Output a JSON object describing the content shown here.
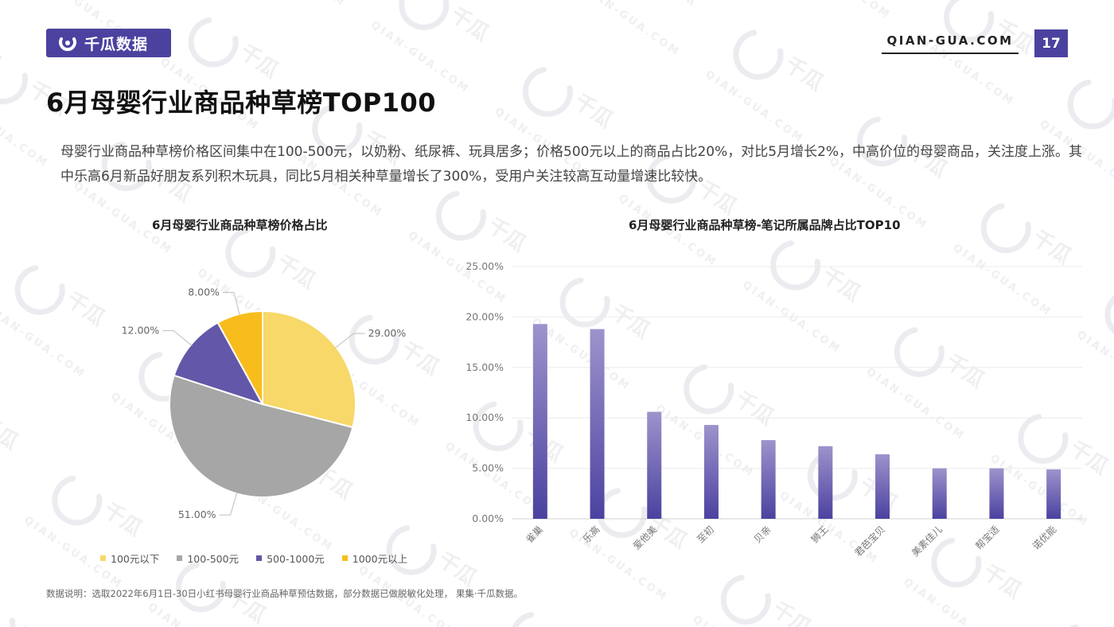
{
  "header": {
    "brand_name": "千瓜数据",
    "site": "QIAN-GUA.COM",
    "page_number": "17",
    "brand_color": "#4b42a0"
  },
  "title": "6月母婴行业商品种草榜TOP100",
  "summary": "母婴行业商品种草榜价格区间集中在100-500元，以奶粉、纸尿裤、玩具居多；价格500元以上的商品占比20%，对比5月增长2%，中高价位的母婴商品，关注度上涨。其中乐高6月新品好朋友系列积木玩具，同比5月相关种草量增长了300%，受用户关注较高互动量增速比较快。",
  "footnote": "数据说明：选取2022年6月1日-30日小红书母婴行业商品种草预估数据，部分数据已做脱敏化处理，  果集·千瓜数据。",
  "chart_data": [
    {
      "type": "pie",
      "title": "6月母婴行业商品种草榜价格占比",
      "slices": [
        {
          "label": "100元以下",
          "value": 29,
          "display": "29.00%",
          "color": "#f7d869"
        },
        {
          "label": "100-500元",
          "value": 51,
          "display": "51.00%",
          "color": "#a6a6a6"
        },
        {
          "label": "500-1000元",
          "value": 12,
          "display": "12.00%",
          "color": "#6257a8"
        },
        {
          "label": "1000元以上",
          "value": 8,
          "display": "8.00%",
          "color": "#f8bd1c"
        }
      ],
      "legend_position": "bottom"
    },
    {
      "type": "bar",
      "title": "6月母婴行业商品种草榜-笔记所属品牌占比TOP10",
      "categories": [
        "雀巢",
        "乐高",
        "爱他美",
        "至初",
        "贝亲",
        "狮王",
        "君芭宝贝",
        "美素佳儿",
        "帮宝适",
        "诺优能"
      ],
      "values": [
        19.3,
        18.8,
        10.6,
        9.3,
        7.8,
        7.2,
        6.4,
        5.0,
        5.0,
        4.9
      ],
      "ylim": [
        0,
        25
      ],
      "yticks": [
        "0.00%",
        "5.00%",
        "10.00%",
        "15.00%",
        "20.00%",
        "25.00%"
      ],
      "grid": true,
      "bar_color_top": "#9d93cc",
      "bar_color_bottom": "#4b42a0"
    }
  ]
}
